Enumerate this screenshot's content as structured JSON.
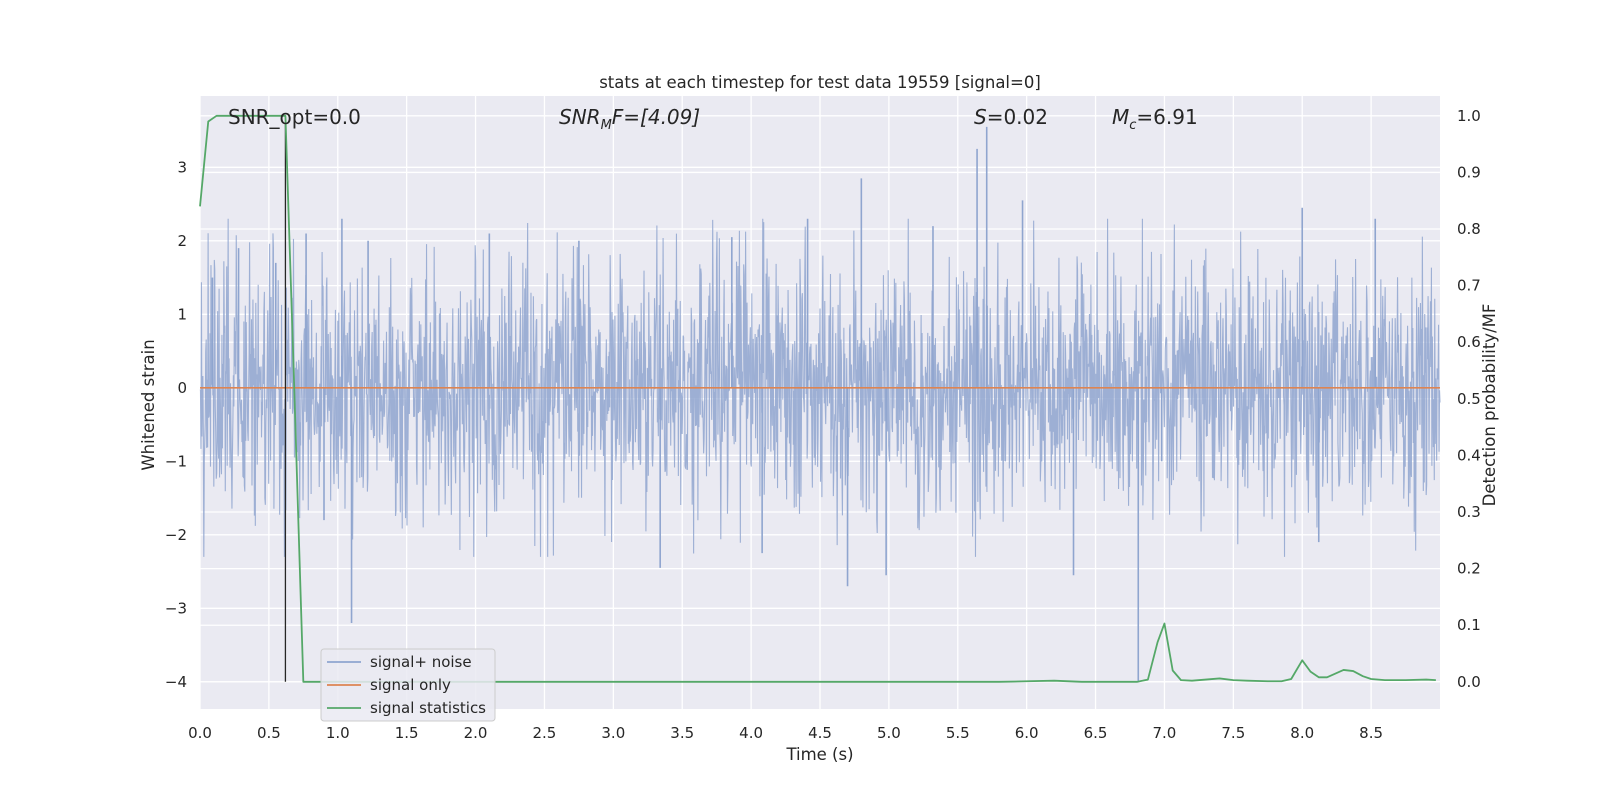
{
  "chart_data": {
    "type": "line",
    "title": "stats at each timestep for test data 19559 [signal=0]",
    "xlabel": "Time (s)",
    "ylabel_left": "Whitened strain",
    "ylabel_right": "Detection probability/MF",
    "xlim": [
      0.0,
      9.0
    ],
    "ylim_left": [
      -4.37,
      3.97
    ],
    "ylim_right": [
      -0.048,
      1.035
    ],
    "x_ticks": [
      "0.0",
      "0.5",
      "1.0",
      "1.5",
      "2.0",
      "2.5",
      "3.0",
      "3.5",
      "4.0",
      "4.5",
      "5.0",
      "5.5",
      "6.0",
      "6.5",
      "7.0",
      "7.5",
      "8.0",
      "8.5"
    ],
    "y_ticks_left": [
      "−4",
      "−3",
      "−2",
      "−1",
      "0",
      "1",
      "2",
      "3"
    ],
    "y_ticks_right": [
      "0.0",
      "0.1",
      "0.2",
      "0.3",
      "0.4",
      "0.5",
      "0.6",
      "0.7",
      "0.8",
      "0.9",
      "1.0"
    ],
    "grid": true,
    "legend_position": "lower-left",
    "annotations": {
      "snr_opt": "SNR_opt=0.0",
      "snr_mf_label": "SNR",
      "snr_mf_sub": "M",
      "snr_mf_value": "F=[4.09]",
      "s_label": "S",
      "s_value": "=0.02",
      "mc_label": "M",
      "mc_sub": "c",
      "mc_value": "=6.91"
    },
    "series": [
      {
        "name": "signal+ noise",
        "color": "#8fa5cf",
        "axis": "left",
        "style": "dense noise trace, about ±1.3 typical amplitude",
        "peaks": [
          {
            "x": 0.09,
            "y": 1.5
          },
          {
            "x": 0.28,
            "y": 1.9
          },
          {
            "x": 0.55,
            "y": 1.7
          },
          {
            "x": 0.77,
            "y": 2.1
          },
          {
            "x": 0.9,
            "y": -1.8
          },
          {
            "x": 1.03,
            "y": 2.3
          },
          {
            "x": 1.1,
            "y": -3.2
          },
          {
            "x": 1.22,
            "y": 2.0
          },
          {
            "x": 2.1,
            "y": 2.1
          },
          {
            "x": 2.75,
            "y": 2.0
          },
          {
            "x": 3.34,
            "y": -2.45
          },
          {
            "x": 3.86,
            "y": 2.05
          },
          {
            "x": 4.08,
            "y": -2.25
          },
          {
            "x": 4.41,
            "y": 2.3
          },
          {
            "x": 4.7,
            "y": -2.7
          },
          {
            "x": 4.8,
            "y": 2.85
          },
          {
            "x": 4.98,
            "y": -2.55
          },
          {
            "x": 5.32,
            "y": 2.2
          },
          {
            "x": 5.64,
            "y": 3.25
          },
          {
            "x": 5.71,
            "y": 3.55
          },
          {
            "x": 5.97,
            "y": 2.55
          },
          {
            "x": 6.34,
            "y": -2.55
          },
          {
            "x": 6.81,
            "y": -4.0
          },
          {
            "x": 6.98,
            "y": -1.0
          },
          {
            "x": 8.0,
            "y": 2.45
          },
          {
            "x": 8.12,
            "y": -2.1
          },
          {
            "x": 8.53,
            "y": 2.3
          }
        ]
      },
      {
        "name": "signal only",
        "color": "#dd8452",
        "axis": "left",
        "x": [
          0.0,
          9.0
        ],
        "y": [
          0.0,
          0.0
        ]
      },
      {
        "name": "signal statistics",
        "color": "#55a868",
        "axis": "right",
        "x": [
          0.0,
          0.06,
          0.12,
          0.2,
          0.3,
          0.4,
          0.5,
          0.58,
          0.62,
          0.68,
          0.75,
          0.8,
          1.5,
          2.5,
          3.5,
          4.5,
          5.5,
          5.8,
          6.0,
          6.2,
          6.4,
          6.6,
          6.8,
          6.88,
          6.95,
          7.0,
          7.06,
          7.12,
          7.2,
          7.3,
          7.4,
          7.5,
          7.6,
          7.75,
          7.85,
          7.92,
          8.0,
          8.06,
          8.12,
          8.18,
          8.3,
          8.37,
          8.44,
          8.5,
          8.6,
          8.75,
          8.9,
          8.97
        ],
        "y": [
          0.84,
          0.99,
          1.0,
          1.0,
          1.0,
          1.0,
          1.0,
          1.0,
          1.0,
          0.55,
          0.0,
          0.0,
          0.0,
          0.0,
          0.0,
          0.0,
          0.0,
          0.0,
          0.001,
          0.002,
          0.0,
          0.0,
          0.0,
          0.004,
          0.07,
          0.103,
          0.02,
          0.003,
          0.002,
          0.004,
          0.006,
          0.003,
          0.002,
          0.001,
          0.001,
          0.005,
          0.038,
          0.018,
          0.008,
          0.008,
          0.021,
          0.019,
          0.01,
          0.005,
          0.003,
          0.003,
          0.004,
          0.003
        ]
      }
    ],
    "vertical_marker": {
      "color": "#262626",
      "x": 0.62,
      "y_left": [
        -4.0,
        3.6
      ]
    }
  }
}
